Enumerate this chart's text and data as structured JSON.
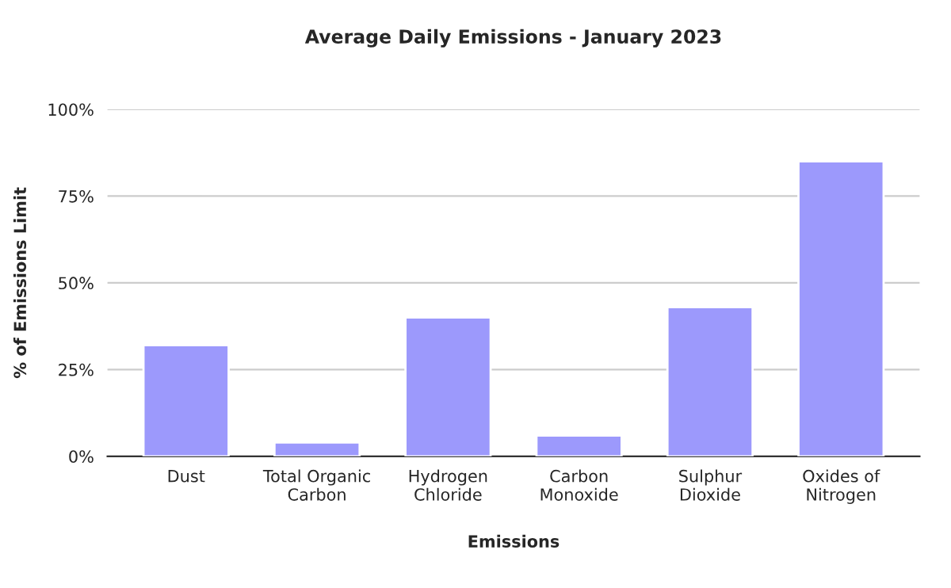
{
  "chart_data": {
    "type": "bar",
    "title": "Average Daily Emissions - January 2023",
    "xlabel": "Emissions",
    "ylabel": "% of Emissions Limit",
    "categories": [
      "Dust",
      "Total Organic\nCarbon",
      "Hydrogen\nChloride",
      "Carbon\nMonoxide",
      "Sulphur\nDioxide",
      "Oxides of\nNitrogen"
    ],
    "values": [
      32,
      4,
      40,
      6,
      43,
      85
    ],
    "color": "#9c99fc",
    "ylim": [
      0,
      100
    ],
    "yticks": [
      {
        "value": 0,
        "label": "0%"
      },
      {
        "value": 25,
        "label": "25%"
      },
      {
        "value": 50,
        "label": "50%"
      },
      {
        "value": 75,
        "label": "75%"
      },
      {
        "value": 100,
        "label": "100%"
      }
    ],
    "grid": "y"
  }
}
